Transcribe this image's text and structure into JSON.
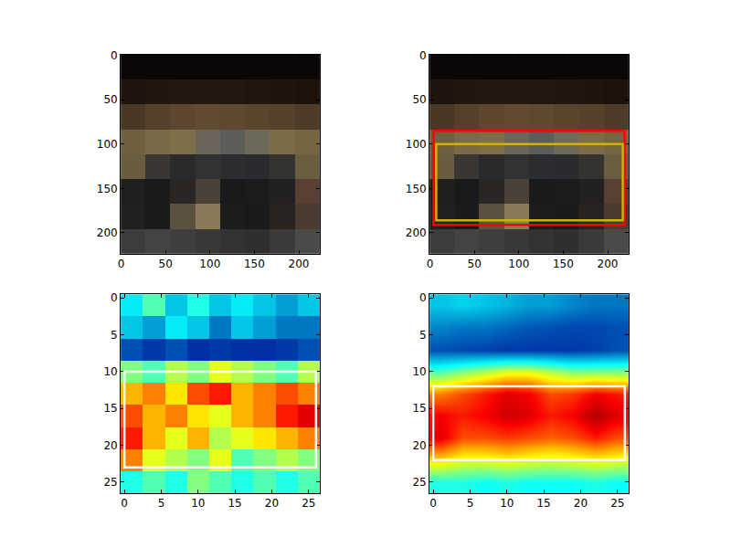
{
  "chart_data": [
    {
      "type": "image",
      "xlim": [
        -0.5,
        223.5
      ],
      "ylim": [
        223.5,
        -0.5
      ],
      "xticks": [
        0,
        50,
        100,
        150,
        200
      ],
      "yticks": [
        0,
        50,
        100,
        150,
        200
      ],
      "pixels": [
        [
          "#0b0706",
          "#0b0706",
          "#0b0706",
          "#0b0706",
          "#0b0706",
          "#0b0706",
          "#0b0706",
          "#0b0706"
        ],
        [
          "#1e140d",
          "#22160e",
          "#24170f",
          "#25180f",
          "#24170e",
          "#22150d",
          "#20140c",
          "#1d130b"
        ],
        [
          "#4a3826",
          "#55402b",
          "#5e472e",
          "#624a30",
          "#5e482f",
          "#5a452d",
          "#56422b",
          "#4e3c28"
        ],
        [
          "#6f6040",
          "#7a6a47",
          "#7e6e4a",
          "#6a6558",
          "#5c5c58",
          "#6e6a5a",
          "#7c6c48",
          "#75663f"
        ],
        [
          "#6a5c40",
          "#3a3633",
          "#2a2a2c",
          "#303234",
          "#2c2d30",
          "#2a2b2e",
          "#35332f",
          "#6a5e40"
        ],
        [
          "#1e1e20",
          "#1a1a1c",
          "#2a2624",
          "#4a4238",
          "#1a1a1c",
          "#1c1c1e",
          "#222020",
          "#5a4034"
        ],
        [
          "#222022",
          "#1c1b1c",
          "#5c5040",
          "#8a7a58",
          "#1c1c1e",
          "#1a1a1c",
          "#2a2420",
          "#4a3a30"
        ],
        [
          "#3c3c3c",
          "#444444",
          "#3e3e3e",
          "#383838",
          "#333333",
          "#2f2f2f",
          "#3a3a3a",
          "#4a4a48"
        ]
      ],
      "boxes": []
    },
    {
      "type": "image",
      "xlim": [
        -0.5,
        223.5
      ],
      "ylim": [
        223.5,
        -0.5
      ],
      "xticks": [
        0,
        50,
        100,
        150,
        200
      ],
      "yticks": [
        0,
        50,
        100,
        150,
        200
      ],
      "pixels": [
        [
          "#0b0706",
          "#0b0706",
          "#0b0706",
          "#0b0706",
          "#0b0706",
          "#0b0706",
          "#0b0706",
          "#0b0706"
        ],
        [
          "#1e140d",
          "#22160e",
          "#24170f",
          "#25180f",
          "#24170e",
          "#22150d",
          "#20140c",
          "#1d130b"
        ],
        [
          "#4a3826",
          "#55402b",
          "#5e472e",
          "#624a30",
          "#5e482f",
          "#5a452d",
          "#56422b",
          "#4e3c28"
        ],
        [
          "#6f6040",
          "#7a6a47",
          "#7e6e4a",
          "#6a6558",
          "#5c5c58",
          "#6e6a5a",
          "#7c6c48",
          "#75663f"
        ],
        [
          "#6a5c40",
          "#3a3633",
          "#2a2a2c",
          "#303234",
          "#2c2d30",
          "#2a2b2e",
          "#35332f",
          "#6a5e40"
        ],
        [
          "#1e1e20",
          "#1a1a1c",
          "#2a2624",
          "#4a4238",
          "#1a1a1c",
          "#1c1c1e",
          "#222020",
          "#5a4034"
        ],
        [
          "#222022",
          "#1c1b1c",
          "#5c5040",
          "#8a7a58",
          "#1c1c1e",
          "#1a1a1c",
          "#2a2420",
          "#4a3a30"
        ],
        [
          "#3c3c3c",
          "#444444",
          "#3e3e3e",
          "#383838",
          "#333333",
          "#2f2f2f",
          "#3a3a3a",
          "#4a4a48"
        ]
      ],
      "boxes": [
        {
          "x0": 4,
          "y0": 85,
          "x1": 219,
          "y1": 191,
          "color": "#ff0000"
        },
        {
          "x0": 7,
          "y0": 100,
          "x1": 217,
          "y1": 186,
          "color": "#d4b000"
        }
      ]
    },
    {
      "type": "heatmap",
      "xlim": [
        -0.5,
        26.5
      ],
      "ylim": [
        26.5,
        -0.5
      ],
      "xticks": [
        0,
        5,
        10,
        15,
        20,
        25
      ],
      "yticks": [
        0,
        5,
        10,
        15,
        20,
        25
      ],
      "x": [
        1,
        4,
        7,
        10,
        13,
        16,
        19,
        22,
        25
      ],
      "y": [
        1,
        4,
        7,
        10,
        13,
        16,
        19,
        22,
        25
      ],
      "zlim": [
        0,
        1
      ],
      "cells": [
        [
          0.35,
          0.45,
          0.3,
          0.4,
          0.3,
          0.35,
          0.3,
          0.25,
          0.3
        ],
        [
          0.3,
          0.25,
          0.35,
          0.3,
          0.2,
          0.3,
          0.25,
          0.2,
          0.2
        ],
        [
          0.15,
          0.12,
          0.15,
          0.1,
          0.12,
          0.1,
          0.1,
          0.12,
          0.15
        ],
        [
          0.5,
          0.45,
          0.55,
          0.5,
          0.6,
          0.55,
          0.5,
          0.45,
          0.55
        ],
        [
          0.7,
          0.75,
          0.65,
          0.8,
          0.85,
          0.7,
          0.75,
          0.8,
          0.75
        ],
        [
          0.8,
          0.7,
          0.75,
          0.65,
          0.6,
          0.7,
          0.75,
          0.85,
          0.9
        ],
        [
          0.85,
          0.7,
          0.6,
          0.7,
          0.55,
          0.6,
          0.65,
          0.7,
          0.75
        ],
        [
          0.75,
          0.6,
          0.55,
          0.5,
          0.6,
          0.45,
          0.5,
          0.55,
          0.5
        ],
        [
          0.4,
          0.45,
          0.4,
          0.5,
          0.45,
          0.4,
          0.45,
          0.4,
          0.45
        ]
      ],
      "boxes": [
        {
          "x0": 0,
          "y0": 10,
          "x1": 26,
          "y1": 23,
          "color": "#ffffff"
        }
      ]
    },
    {
      "type": "heatmap",
      "xlim": [
        -0.5,
        26.5
      ],
      "ylim": [
        26.5,
        -0.5
      ],
      "xticks": [
        0,
        5,
        10,
        15,
        20,
        25
      ],
      "yticks": [
        0,
        5,
        10,
        15,
        20,
        25
      ],
      "x": [
        1,
        4,
        7,
        10,
        13,
        16,
        19,
        22,
        25
      ],
      "y": [
        1,
        4,
        7,
        10,
        13,
        16,
        19,
        22,
        25
      ],
      "zlim": [
        0,
        1
      ],
      "cells": [
        [
          0.3,
          0.32,
          0.3,
          0.28,
          0.25,
          0.25,
          0.22,
          0.2,
          0.2
        ],
        [
          0.22,
          0.2,
          0.2,
          0.18,
          0.16,
          0.15,
          0.14,
          0.14,
          0.15
        ],
        [
          0.15,
          0.14,
          0.13,
          0.12,
          0.12,
          0.12,
          0.12,
          0.13,
          0.15
        ],
        [
          0.45,
          0.5,
          0.55,
          0.6,
          0.6,
          0.55,
          0.5,
          0.5,
          0.5
        ],
        [
          0.75,
          0.8,
          0.85,
          0.9,
          0.88,
          0.8,
          0.82,
          0.88,
          0.85
        ],
        [
          0.88,
          0.85,
          0.88,
          0.92,
          0.9,
          0.85,
          0.88,
          0.95,
          0.9
        ],
        [
          0.9,
          0.8,
          0.8,
          0.82,
          0.8,
          0.78,
          0.8,
          0.85,
          0.8
        ],
        [
          0.65,
          0.6,
          0.6,
          0.62,
          0.6,
          0.58,
          0.6,
          0.62,
          0.6
        ],
        [
          0.4,
          0.4,
          0.38,
          0.4,
          0.38,
          0.38,
          0.38,
          0.4,
          0.38
        ]
      ],
      "boxes": [
        {
          "x0": 0,
          "y0": 12,
          "x1": 26,
          "y1": 22,
          "color": "#ffffff"
        }
      ]
    }
  ]
}
